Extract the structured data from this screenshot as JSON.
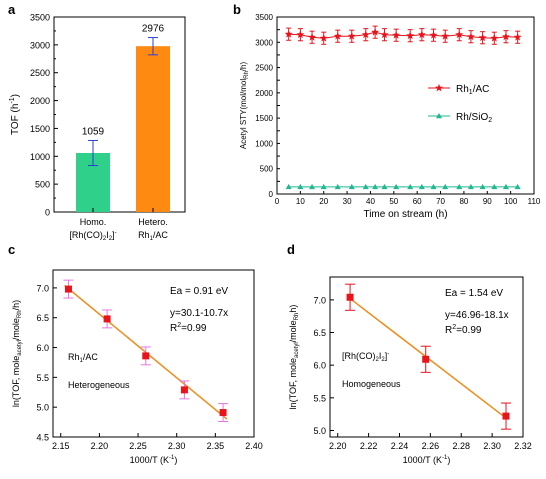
{
  "chart_data": [
    {
      "panel": "a",
      "type": "bar",
      "ylabel": "TOF (h⁻¹)",
      "ylim": [
        0,
        3500
      ],
      "yticks": [
        0,
        500,
        1000,
        1500,
        2000,
        2500,
        3000,
        3500
      ],
      "categories": [
        {
          "line1": "Homo.",
          "line2": "[Rh(CO)₂I₂]⁻"
        },
        {
          "line1": "Hetero.",
          "line2": "Rh₁/AC"
        }
      ],
      "values": [
        1059,
        2976
      ],
      "errors": [
        225,
        155
      ],
      "value_labels": [
        "1059",
        "2976"
      ],
      "colors": [
        "#2fd18a",
        "#ff8a12"
      ],
      "error_color": "#2b3fd8"
    },
    {
      "panel": "b",
      "type": "scatter",
      "ylabel": "Acetyl STY(mol/mol₁ₐ/h)",
      "ylabel_parts": {
        "main": "Acetyl STY(mol/mol",
        "sub": "Rh",
        "tail": "/h)"
      },
      "xlabel": "Time on stream (h)",
      "xlim": [
        0,
        110
      ],
      "xticks": [
        0,
        10,
        20,
        30,
        40,
        50,
        60,
        70,
        80,
        90,
        100,
        110
      ],
      "ylim": [
        0,
        3500
      ],
      "yticks": [
        0,
        250,
        500,
        750,
        1000,
        1250,
        1500,
        1750,
        2000,
        2250,
        2500,
        2750,
        3000,
        3250,
        3500
      ],
      "series": [
        {
          "name": "Rh₁/AC",
          "name_parts": {
            "main": "Rh",
            "sub": "1",
            "tail": "/AC"
          },
          "color": "#e8141c",
          "marker": "star",
          "x": [
            5,
            10,
            15,
            20,
            26,
            32,
            38,
            42,
            46,
            51,
            57,
            62,
            67,
            72,
            78,
            83,
            88,
            93,
            98,
            103
          ],
          "y": [
            3160,
            3150,
            3100,
            3080,
            3120,
            3120,
            3150,
            3200,
            3150,
            3140,
            3130,
            3150,
            3140,
            3120,
            3150,
            3110,
            3090,
            3080,
            3110,
            3100
          ],
          "error": 120
        },
        {
          "name": "Rh/SiO₂",
          "name_parts": {
            "main": "Rh/SiO",
            "sub": "2",
            "tail": ""
          },
          "color": "#1fb890",
          "marker": "triangle",
          "x": [
            5,
            10,
            15,
            20,
            26,
            32,
            38,
            42,
            46,
            51,
            57,
            62,
            67,
            72,
            78,
            83,
            88,
            93,
            98,
            103
          ],
          "y": [
            140,
            140,
            140,
            140,
            140,
            140,
            140,
            140,
            140,
            140,
            140,
            140,
            140,
            140,
            140,
            140,
            140,
            140,
            140,
            140
          ],
          "error": 0
        }
      ]
    },
    {
      "panel": "c",
      "type": "scatter",
      "ylabel": "ln(TOF, moleₐₖₑₜᵧ/mole₁ₐ/h)",
      "ylabel_parts": {
        "p1": "ln(TOF, mole",
        "s1": "acetyl",
        "p2": "/mole",
        "s2": "Rh",
        "p3": "/h)"
      },
      "xlabel": "1000/T (K⁻¹)",
      "xlim": [
        2.14,
        2.4
      ],
      "xticks": [
        2.15,
        2.2,
        2.25,
        2.3,
        2.35,
        2.4
      ],
      "xtick_labels": [
        "2.15",
        "2.20",
        "2.25",
        "2.30",
        "2.35",
        "2.40"
      ],
      "ylim": [
        4.5,
        7.3
      ],
      "yticks": [
        4.5,
        5.0,
        5.5,
        6.0,
        6.5,
        7.0
      ],
      "ytick_labels": [
        "4.5",
        "5.0",
        "5.5",
        "6.0",
        "6.5",
        "7.0"
      ],
      "points": {
        "x": [
          2.16,
          2.21,
          2.26,
          2.31,
          2.36
        ],
        "y": [
          6.98,
          6.48,
          5.86,
          5.29,
          4.91
        ]
      },
      "error": 0.15,
      "fit": {
        "x": [
          2.155,
          2.365
        ],
        "y": [
          7.04,
          4.8
        ]
      },
      "point_color": "#e8141c",
      "error_color": "#e277e2",
      "fit_color": "#f08c1a",
      "annotations": {
        "ea": "Ea = 0.91 eV",
        "eq": "y=30.1-10.7x",
        "r2": "R²=0.99",
        "catalyst_parts": {
          "main": "Rh",
          "sub": "1",
          "tail": "/AC"
        },
        "mode": "Heterogeneous"
      }
    },
    {
      "panel": "d",
      "type": "scatter",
      "ylabel": "ln(TOF, moleₐₖₑₜᵧ/mole₁ₐ/h)",
      "ylabel_parts": {
        "p1": "ln(TOF, mole",
        "s1": "acetyl",
        "p2": "/mole",
        "s2": "Rh",
        "p3": "h)"
      },
      "xlabel": "1000/T (K⁻¹)",
      "xlim": [
        2.195,
        2.32
      ],
      "xticks": [
        2.2,
        2.22,
        2.24,
        2.26,
        2.28,
        2.3,
        2.32
      ],
      "xtick_labels": [
        "2.20",
        "2.22",
        "2.24",
        "2.26",
        "2.28",
        "2.30",
        "2.32"
      ],
      "ylim": [
        4.9,
        7.35
      ],
      "yticks": [
        5.0,
        5.5,
        6.0,
        6.5,
        7.0
      ],
      "ytick_labels": [
        "5.0",
        "5.5",
        "6.0",
        "6.5",
        "7.0"
      ],
      "points": {
        "x": [
          2.208,
          2.257,
          2.309
        ],
        "y": [
          7.04,
          6.09,
          5.22
        ]
      },
      "error": 0.2,
      "fit": {
        "x": [
          2.208,
          2.309
        ],
        "y": [
          7.02,
          5.19
        ]
      },
      "point_color": "#e8141c",
      "error_color": "#e8141c",
      "fit_color": "#f08c1a",
      "annotations": {
        "ea": "Ea = 1.54 eV",
        "eq": "y=46.96-18.1x",
        "r2": "R²=0.99",
        "catalyst_parts": {
          "main": "[Rh(CO)",
          "sub": "2",
          "mid": "I",
          "sub2": "2",
          "sup": "]⁻"
        },
        "mode": "Homogeneous"
      }
    }
  ]
}
